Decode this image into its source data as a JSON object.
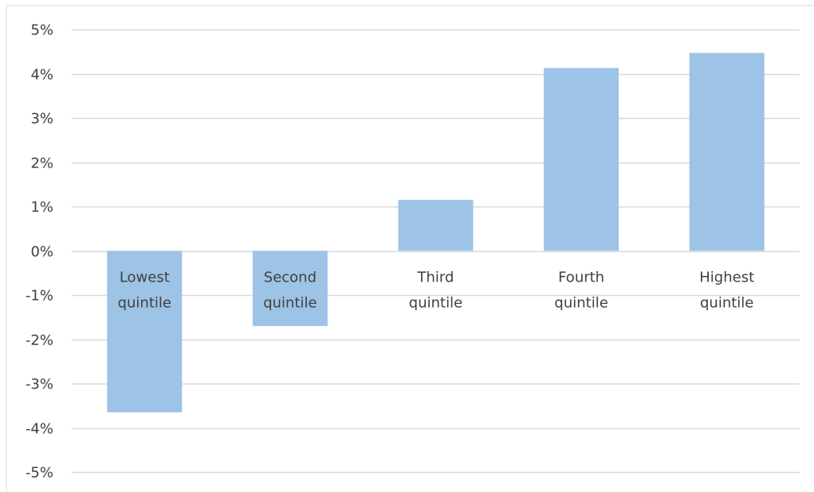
{
  "chart_data": {
    "type": "bar",
    "categories": [
      [
        "Lowest",
        "quintile"
      ],
      [
        "Second",
        "quintile"
      ],
      [
        "Third",
        "quintile"
      ],
      [
        "Fourth",
        "quintile"
      ],
      [
        "Highest",
        "quintile"
      ]
    ],
    "values": [
      -3.65,
      -1.7,
      1.15,
      4.13,
      4.47
    ],
    "yticks": [
      "5%",
      "4%",
      "3%",
      "2%",
      "1%",
      "0%",
      "-1%",
      "-2%",
      "-3%",
      "-4%",
      "-5%"
    ],
    "ylim": [
      -5,
      5
    ],
    "title": "",
    "xlabel": "",
    "ylabel": "",
    "grid": true,
    "legend": "none",
    "colors": {
      "bar": "#9DC3E6",
      "grid": "#D9D9D9",
      "frame": "#D9D9D9",
      "text": "#404040"
    }
  }
}
